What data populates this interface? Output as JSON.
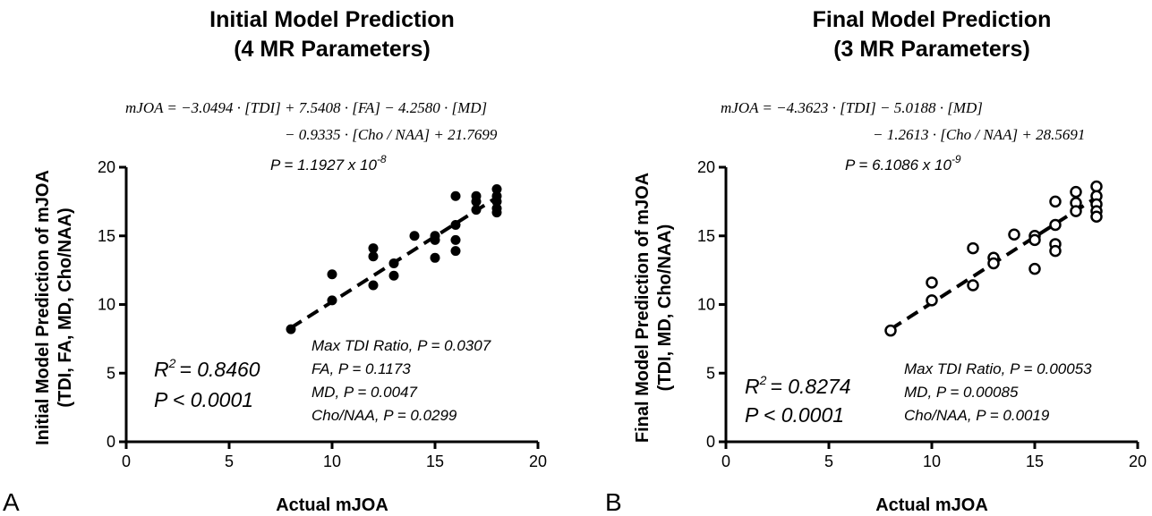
{
  "chart_data": [
    {
      "type": "scatter",
      "panel_letter": "A",
      "title_line1": "Initial Model Prediction",
      "title_line2": "(4 MR Parameters)",
      "equation_line1": "mJOA = −3.0494 · [TDI] + 7.5408 · [FA] − 4.2580 · [MD]",
      "equation_line2": "− 0.9335 · [Cho / NAA] + 21.7699",
      "p_value_text": "P = 1.1927 x 10",
      "p_value_exp": "-8",
      "xlabel": "Actual mJOA",
      "ylabel_line1": "Initial Model Prediction of mJOA",
      "ylabel_line2": "(TDI, FA, MD, Cho/NAA)",
      "xlim": [
        0,
        20
      ],
      "ylim": [
        0,
        20
      ],
      "xticks": [
        "0",
        "5",
        "10",
        "15",
        "20"
      ],
      "yticks": [
        "0",
        "5",
        "10",
        "15",
        "20"
      ],
      "r2_text": "= 0.8460",
      "r2_label": "R",
      "r2_sup": "2",
      "p_text": "P < 0.0001",
      "param_lines": [
        "Max TDI Ratio, P = 0.0307",
        "FA, P = 0.1173",
        "MD, P = 0.0047",
        "Cho/NAA, P = 0.0299"
      ],
      "marker": "filled",
      "points": [
        [
          8,
          8.2
        ],
        [
          10,
          12.2
        ],
        [
          10,
          10.3
        ],
        [
          12,
          14.1
        ],
        [
          12,
          13.5
        ],
        [
          12,
          11.4
        ],
        [
          13,
          13.0
        ],
        [
          13,
          12.1
        ],
        [
          14,
          15.0
        ],
        [
          15,
          15.0
        ],
        [
          15,
          14.7
        ],
        [
          15,
          13.4
        ],
        [
          16,
          17.9
        ],
        [
          16,
          15.8
        ],
        [
          16,
          14.7
        ],
        [
          16,
          13.9
        ],
        [
          17,
          17.9
        ],
        [
          17,
          17.5
        ],
        [
          17,
          16.9
        ],
        [
          18,
          18.4
        ],
        [
          18,
          17.9
        ],
        [
          18,
          17.5
        ],
        [
          18,
          17.0
        ],
        [
          18,
          16.7
        ]
      ],
      "fit_line": [
        [
          8,
          8.3
        ],
        [
          18,
          17.8
        ]
      ]
    },
    {
      "type": "scatter",
      "panel_letter": "B",
      "title_line1": "Final Model Prediction",
      "title_line2": "(3 MR Parameters)",
      "equation_line1": "mJOA = −4.3623 · [TDI] − 5.0188 · [MD]",
      "equation_line2": "− 1.2613 · [Cho / NAA] + 28.5691",
      "p_value_text": "P = 6.1086 x 10",
      "p_value_exp": "-9",
      "xlabel": "Actual mJOA",
      "ylabel_line1": "Final Model Prediction of mJOA",
      "ylabel_line2": "(TDI, MD, Cho/NAA)",
      "xlim": [
        0,
        20
      ],
      "ylim": [
        0,
        20
      ],
      "xticks": [
        "0",
        "5",
        "10",
        "15",
        "20"
      ],
      "yticks": [
        "0",
        "5",
        "10",
        "15",
        "20"
      ],
      "r2_text": "= 0.8274",
      "r2_label": "R",
      "r2_sup": "2",
      "p_text": "P < 0.0001",
      "param_lines": [
        "Max TDI Ratio, P = 0.00053",
        "MD, P = 0.00085",
        "Cho/NAA, P = 0.0019"
      ],
      "marker": "open",
      "points": [
        [
          8,
          8.1
        ],
        [
          10,
          11.6
        ],
        [
          10,
          10.3
        ],
        [
          12,
          14.1
        ],
        [
          12,
          11.4
        ],
        [
          13,
          13.4
        ],
        [
          13,
          13.0
        ],
        [
          14,
          15.1
        ],
        [
          15,
          15.0
        ],
        [
          15,
          14.7
        ],
        [
          15,
          12.6
        ],
        [
          16,
          17.5
        ],
        [
          16,
          15.8
        ],
        [
          16,
          14.4
        ],
        [
          16,
          13.9
        ],
        [
          17,
          18.2
        ],
        [
          17,
          17.4
        ],
        [
          17,
          16.8
        ],
        [
          18,
          18.6
        ],
        [
          18,
          17.9
        ],
        [
          18,
          17.3
        ],
        [
          18,
          16.8
        ],
        [
          18,
          16.4
        ]
      ],
      "fit_line": [
        [
          8,
          8.2
        ],
        [
          18,
          17.8
        ]
      ]
    }
  ]
}
